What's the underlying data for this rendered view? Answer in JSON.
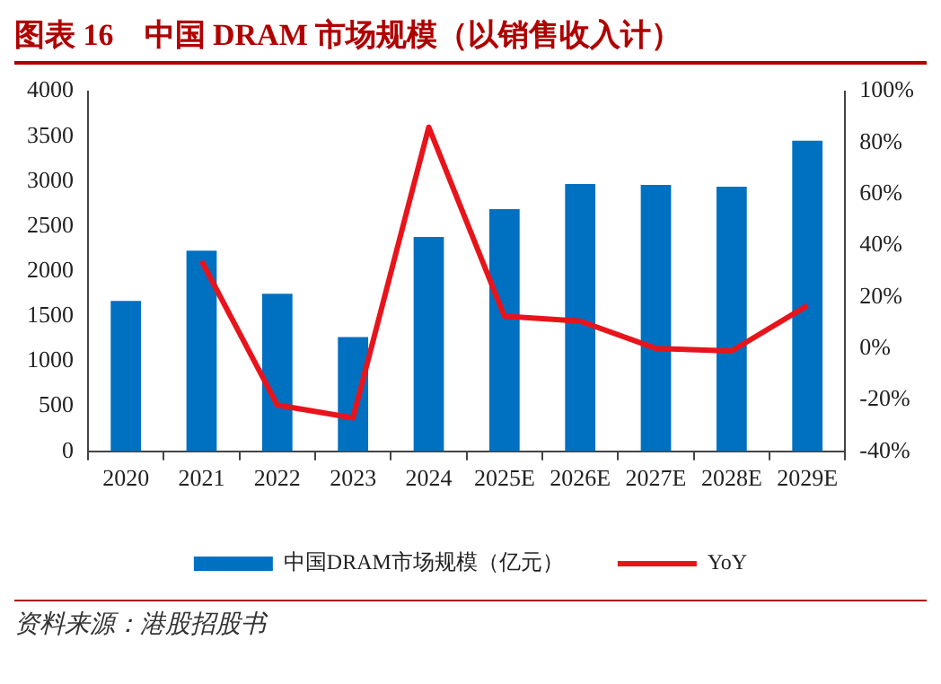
{
  "chart_data": {
    "type": "bar",
    "title": "图表 16　中国 DRAM 市场规模（以销售收入计）",
    "categories": [
      "2020",
      "2021",
      "2022",
      "2023",
      "2024",
      "2025E",
      "2026E",
      "2027E",
      "2028E",
      "2029E"
    ],
    "series": [
      {
        "name": "中国DRAM市场规模（亿元）",
        "color": "#0070c0",
        "values": [
          1670,
          2230,
          1750,
          1270,
          2380,
          2690,
          2970,
          2960,
          2940,
          3450
        ]
      },
      {
        "name": "YoY",
        "type": "line",
        "axis": "y2",
        "color": "#e8141c",
        "values": [
          null,
          34,
          -22,
          -27,
          86,
          12.5,
          10.6,
          0,
          -1,
          16.7
        ]
      }
    ],
    "ylim": [
      0,
      4000
    ],
    "yticks": [
      0,
      500,
      1000,
      1500,
      2000,
      2500,
      3000,
      3500,
      4000
    ],
    "y2lim": [
      -40,
      100
    ],
    "y2ticks": [
      {
        "value": -40,
        "label": "-40%"
      },
      {
        "value": -20,
        "label": "-20%"
      },
      {
        "value": 0,
        "label": "0%"
      },
      {
        "value": 20,
        "label": "20%"
      },
      {
        "value": 40,
        "label": "40%"
      },
      {
        "value": 60,
        "label": "60%"
      },
      {
        "value": 80,
        "label": "80%"
      },
      {
        "value": 100,
        "label": "100%"
      }
    ],
    "legend": "bottom",
    "grid": false,
    "marker": "none",
    "annotations": [
      "资料来源：港股招股书"
    ]
  }
}
